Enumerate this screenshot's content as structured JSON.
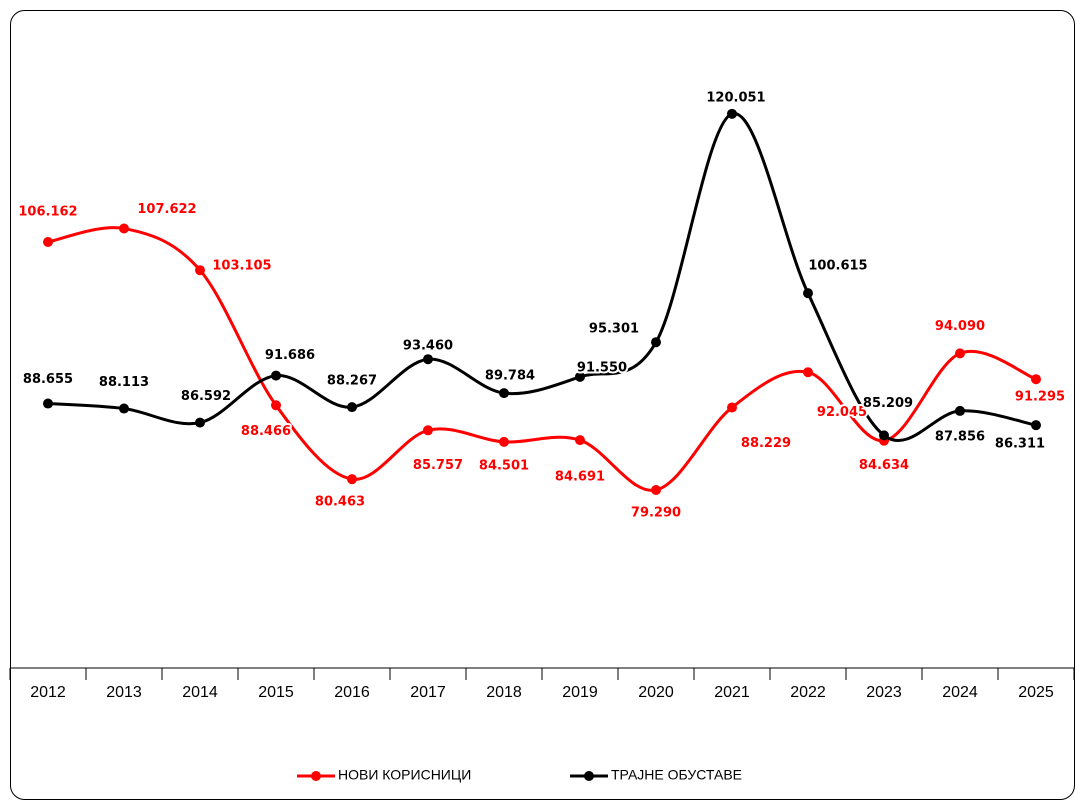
{
  "chart_data": {
    "type": "line",
    "categories": [
      "2012",
      "2013",
      "2014",
      "2015",
      "2016",
      "2017",
      "2018",
      "2019",
      "2020",
      "2021",
      "2022",
      "2023",
      "2024",
      "2025"
    ],
    "series": [
      {
        "name": "НОВИ КОРИСНИЦИ",
        "color": "#ff0000",
        "values": [
          106162,
          107622,
          103105,
          88466,
          80463,
          85757,
          84501,
          84691,
          79290,
          88229,
          92045,
          84634,
          94090,
          91295
        ],
        "value_labels": [
          "106.162",
          "107.622",
          "103.105",
          "88.466",
          "80.463",
          "85.757",
          "84.501",
          "84.691",
          "79.290",
          "88.229",
          "92.045",
          "84.634",
          "94.090",
          "91.295"
        ]
      },
      {
        "name": "ТРАЈНЕ ОБУСТАВЕ",
        "color": "#000000",
        "values": [
          88655,
          88113,
          86592,
          91686,
          88267,
          93460,
          89784,
          91550,
          95301,
          120051,
          100615,
          85209,
          87856,
          86311
        ],
        "value_labels": [
          "88.655",
          "88.113",
          "86.592",
          "91.686",
          "88.267",
          "93.460",
          "89.784",
          "91.550",
          "95.301",
          "120.051",
          "100.615",
          "85.209",
          "87.856",
          "86.311"
        ]
      }
    ],
    "ylim": [
      60000,
      130000
    ],
    "legend": "bottom"
  }
}
